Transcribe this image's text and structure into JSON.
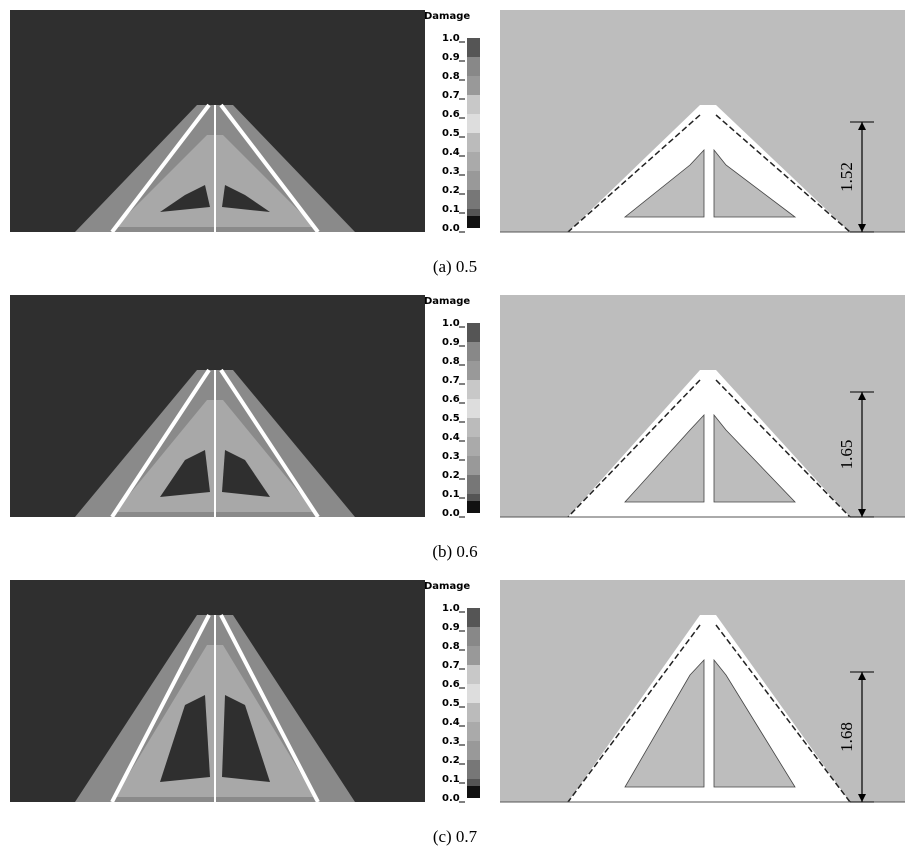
{
  "figure": {
    "colorbar": {
      "title": "Damage",
      "labels": [
        "1.0",
        "0.9",
        "0.8",
        "0.7",
        "0.6",
        "0.5",
        "0.4",
        "0.3",
        "0.2",
        "0.1",
        "0.0"
      ]
    },
    "panels": [
      {
        "caption": "(a) 0.5",
        "dimension": "1.52"
      },
      {
        "caption": "(b) 0.6",
        "dimension": "1.65"
      },
      {
        "caption": "(c) 0.7",
        "dimension": "1.68"
      }
    ]
  }
}
